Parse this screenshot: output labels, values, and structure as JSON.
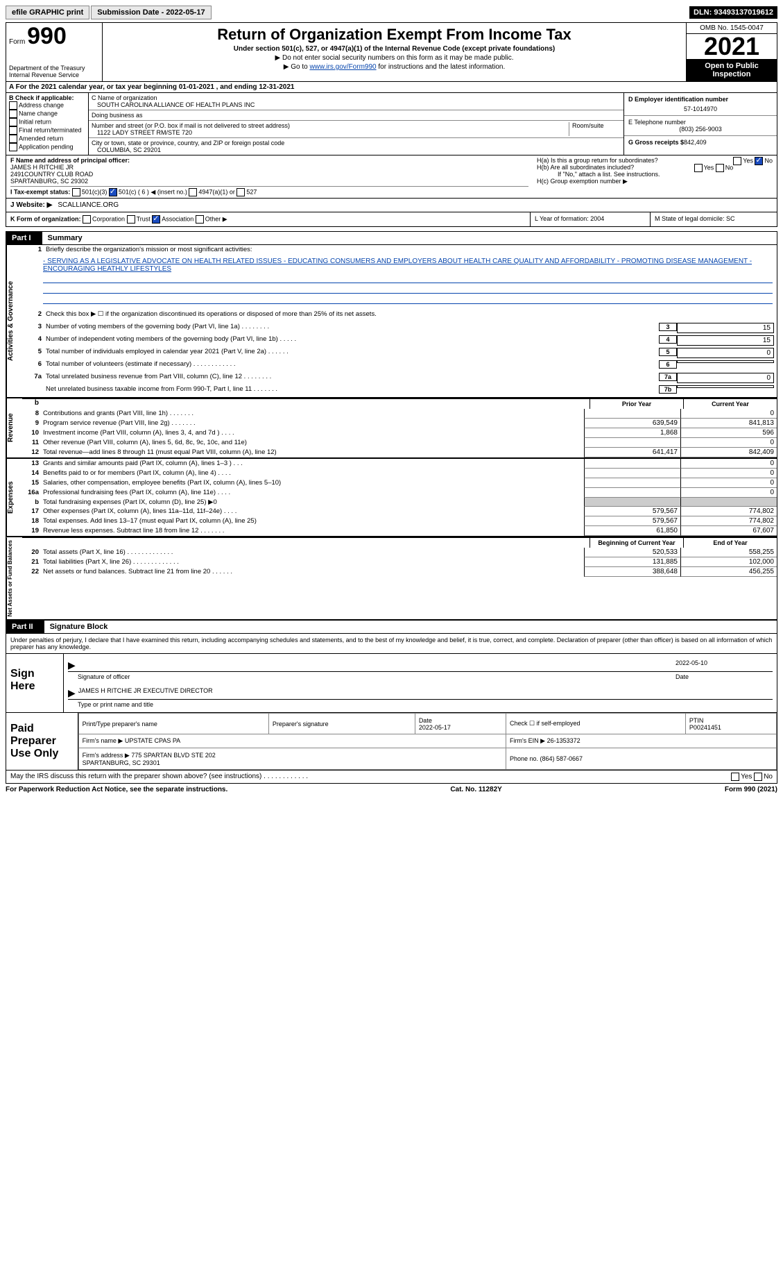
{
  "topbar": {
    "efile": "efile GRAPHIC print",
    "submission": "Submission Date - 2022-05-17",
    "dln": "DLN: 93493137019612"
  },
  "header": {
    "form_label": "Form",
    "form_number": "990",
    "title": "Return of Organization Exempt From Income Tax",
    "subtitle": "Under section 501(c), 527, or 4947(a)(1) of the Internal Revenue Code (except private foundations)",
    "note1": "▶ Do not enter social security numbers on this form as it may be made public.",
    "note2_pre": "▶ Go to ",
    "note2_link": "www.irs.gov/Form990",
    "note2_post": " for instructions and the latest information.",
    "dept": "Department of the Treasury\nInternal Revenue Service",
    "omb": "OMB No. 1545-0047",
    "year": "2021",
    "inspect": "Open to Public Inspection"
  },
  "section_a": "A For the 2021 calendar year, or tax year beginning 01-01-2021   , and ending 12-31-2021",
  "section_b": {
    "label": "B Check if applicable:",
    "items": [
      "Address change",
      "Name change",
      "Initial return",
      "Final return/terminated",
      "Amended return",
      "Application pending"
    ]
  },
  "section_c": {
    "name_label": "C Name of organization",
    "name": "SOUTH CAROLINA ALLIANCE OF HEALTH PLANS INC",
    "dba_label": "Doing business as",
    "addr_label": "Number and street (or P.O. box if mail is not delivered to street address)",
    "room_label": "Room/suite",
    "addr": "1122 LADY STREET RM/STE 720",
    "city_label": "City or town, state or province, country, and ZIP or foreign postal code",
    "city": "COLUMBIA, SC  29201"
  },
  "section_d": {
    "ein_label": "D Employer identification number",
    "ein": "57-1014970",
    "phone_label": "E Telephone number",
    "phone": "(803) 256-9003",
    "gross_label": "G Gross receipts $",
    "gross": "842,409"
  },
  "section_f": {
    "label": "F Name and address of principal officer:",
    "name": "JAMES H RITCHIE JR",
    "addr1": "2491COUNTRY CLUB ROAD",
    "addr2": "SPARTANBURG, SC  29302"
  },
  "section_h": {
    "ha": "H(a)  Is this a group return for subordinates?",
    "hb": "H(b)  Are all subordinates included?",
    "hb_note": "If \"No,\" attach a list. See instructions.",
    "hc": "H(c)  Group exemption number ▶"
  },
  "section_i": {
    "label": "I  Tax-exempt status:",
    "opt1": "501(c)(3)",
    "opt2": "501(c) ( 6 ) ◀ (insert no.)",
    "opt3": "4947(a)(1) or",
    "opt4": "527"
  },
  "section_j": {
    "label": "J  Website: ▶",
    "value": "SCALLIANCE.ORG"
  },
  "section_k": {
    "label": "K Form of organization:",
    "opts": [
      "Corporation",
      "Trust",
      "Association",
      "Other ▶"
    ],
    "l": "L Year of formation: 2004",
    "m": "M State of legal domicile: SC"
  },
  "part1": {
    "label": "Part I",
    "title": "Summary"
  },
  "summary": {
    "line1_label": "Briefly describe the organization's mission or most significant activities:",
    "mission": "- SERVING AS A LEGISLATIVE ADVOCATE ON HEALTH RELATED ISSUES - EDUCATING CONSUMERS AND EMPLOYERS ABOUT HEALTH CARE QUALITY AND AFFORDABILITY - PROMOTING DISEASE MANAGEMENT - ENCOURAGING HEATHLY LIFESTYLES",
    "line2": "Check this box ▶ ☐ if the organization discontinued its operations or disposed of more than 25% of its net assets.",
    "lines_single": [
      {
        "n": "3",
        "d": "Number of voting members of the governing body (Part VI, line 1a)  .  .  .  .  .  .  .  .",
        "box": "3",
        "v": "15"
      },
      {
        "n": "4",
        "d": "Number of independent voting members of the governing body (Part VI, line 1b)  .  .  .  .  .",
        "box": "4",
        "v": "15"
      },
      {
        "n": "5",
        "d": "Total number of individuals employed in calendar year 2021 (Part V, line 2a)  .  .  .  .  .  .",
        "box": "5",
        "v": "0"
      },
      {
        "n": "6",
        "d": "Total number of volunteers (estimate if necessary)  .  .  .  .  .  .  .  .  .  .  .  .",
        "box": "6",
        "v": ""
      },
      {
        "n": "7a",
        "d": "Total unrelated business revenue from Part VIII, column (C), line 12  .  .  .  .  .  .  .  .",
        "box": "7a",
        "v": "0"
      },
      {
        "n": "",
        "d": "Net unrelated business taxable income from Form 990-T, Part I, line 11  .  .  .  .  .  .  .",
        "box": "7b",
        "v": ""
      }
    ],
    "col_headers": {
      "b": "b",
      "prior": "Prior Year",
      "current": "Current Year"
    },
    "revenue": [
      {
        "n": "8",
        "d": "Contributions and grants (Part VIII, line 1h)  .  .  .  .  .  .  .",
        "p": "",
        "c": "0"
      },
      {
        "n": "9",
        "d": "Program service revenue (Part VIII, line 2g)  .  .  .  .  .  .  .",
        "p": "639,549",
        "c": "841,813"
      },
      {
        "n": "10",
        "d": "Investment income (Part VIII, column (A), lines 3, 4, and 7d )  .  .  .  .",
        "p": "1,868",
        "c": "596"
      },
      {
        "n": "11",
        "d": "Other revenue (Part VIII, column (A), lines 5, 6d, 8c, 9c, 10c, and 11e)",
        "p": "",
        "c": "0"
      },
      {
        "n": "12",
        "d": "Total revenue—add lines 8 through 11 (must equal Part VIII, column (A), line 12)",
        "p": "641,417",
        "c": "842,409"
      }
    ],
    "expenses": [
      {
        "n": "13",
        "d": "Grants and similar amounts paid (Part IX, column (A), lines 1–3 )  .  .  .",
        "p": "",
        "c": "0"
      },
      {
        "n": "14",
        "d": "Benefits paid to or for members (Part IX, column (A), line 4)  .  .  .  .",
        "p": "",
        "c": "0"
      },
      {
        "n": "15",
        "d": "Salaries, other compensation, employee benefits (Part IX, column (A), lines 5–10)",
        "p": "",
        "c": "0"
      },
      {
        "n": "16a",
        "d": "Professional fundraising fees (Part IX, column (A), line 11e)  .  .  .  .",
        "p": "",
        "c": "0"
      },
      {
        "n": "b",
        "d": "Total fundraising expenses (Part IX, column (D), line 25) ▶0",
        "p": "shade",
        "c": "shade"
      },
      {
        "n": "17",
        "d": "Other expenses (Part IX, column (A), lines 11a–11d, 11f–24e)  .  .  .  .",
        "p": "579,567",
        "c": "774,802"
      },
      {
        "n": "18",
        "d": "Total expenses. Add lines 13–17 (must equal Part IX, column (A), line 25)",
        "p": "579,567",
        "c": "774,802"
      },
      {
        "n": "19",
        "d": "Revenue less expenses. Subtract line 18 from line 12  .  .  .  .  .  .  .",
        "p": "61,850",
        "c": "67,607"
      }
    ],
    "net_headers": {
      "begin": "Beginning of Current Year",
      "end": "End of Year"
    },
    "net": [
      {
        "n": "20",
        "d": "Total assets (Part X, line 16)  .  .  .  .  .  .  .  .  .  .  .  .  .",
        "p": "520,533",
        "c": "558,255"
      },
      {
        "n": "21",
        "d": "Total liabilities (Part X, line 26)  .  .  .  .  .  .  .  .  .  .  .  .  .",
        "p": "131,885",
        "c": "102,000"
      },
      {
        "n": "22",
        "d": "Net assets or fund balances. Subtract line 21 from line 20  .  .  .  .  .  .",
        "p": "388,648",
        "c": "456,255"
      }
    ]
  },
  "part2": {
    "label": "Part II",
    "title": "Signature Block"
  },
  "sig_text": "Under penalties of perjury, I declare that I have examined this return, including accompanying schedules and statements, and to the best of my knowledge and belief, it is true, correct, and complete. Declaration of preparer (other than officer) is based on all information of which preparer has any knowledge.",
  "sign": {
    "label": "Sign Here",
    "sig_label": "Signature of officer",
    "date": "2022-05-10",
    "date_label": "Date",
    "name": "JAMES H RITCHIE JR  EXECUTIVE DIRECTOR",
    "name_label": "Type or print name and title"
  },
  "paid": {
    "label": "Paid Preparer Use Only",
    "h1": "Print/Type preparer's name",
    "h2": "Preparer's signature",
    "h3": "Date",
    "h3v": "2022-05-17",
    "h4": "Check ☐ if self-employed",
    "h5": "PTIN",
    "h5v": "P00241451",
    "firm_name_l": "Firm's name    ▶",
    "firm_name": "UPSTATE CPAS PA",
    "firm_ein_l": "Firm's EIN ▶",
    "firm_ein": "26-1353372",
    "firm_addr_l": "Firm's address ▶",
    "firm_addr": "775 SPARTAN BLVD STE 202\nSPARTANBURG, SC  29301",
    "phone_l": "Phone no.",
    "phone": "(864) 587-0667"
  },
  "discuss": "May the IRS discuss this return with the preparer shown above? (see instructions)  .  .  .  .  .  .  .  .  .  .  .  .",
  "yes": "Yes",
  "no": "No",
  "footer": {
    "left": "For Paperwork Reduction Act Notice, see the separate instructions.",
    "mid": "Cat. No. 11282Y",
    "right": "Form 990 (2021)"
  },
  "vert": {
    "gov": "Activities & Governance",
    "rev": "Revenue",
    "exp": "Expenses",
    "net": "Net Assets or Fund Balances"
  }
}
